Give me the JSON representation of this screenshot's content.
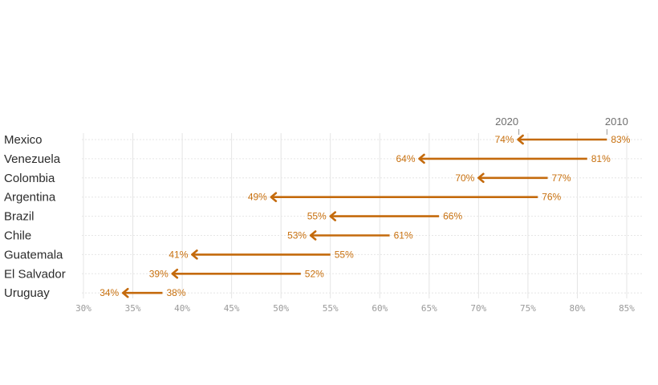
{
  "chart_data": {
    "type": "arrow",
    "series_labels": {
      "start": "2010",
      "end": "2020"
    },
    "xlim": [
      30,
      85
    ],
    "x_ticks": [
      30,
      35,
      40,
      45,
      50,
      55,
      60,
      65,
      70,
      75,
      80,
      85
    ],
    "tick_suffix": "%",
    "rows": [
      {
        "country": "Mexico",
        "v2010": 83,
        "v2020": 74
      },
      {
        "country": "Venezuela",
        "v2010": 81,
        "v2020": 64
      },
      {
        "country": "Colombia",
        "v2010": 77,
        "v2020": 70
      },
      {
        "country": "Argentina",
        "v2010": 76,
        "v2020": 49
      },
      {
        "country": "Brazil",
        "v2010": 66,
        "v2020": 55
      },
      {
        "country": "Chile",
        "v2010": 61,
        "v2020": 53
      },
      {
        "country": "Guatemala",
        "v2010": 55,
        "v2020": 41
      },
      {
        "country": "El Salvador",
        "v2010": 52,
        "v2020": 39
      },
      {
        "country": "Uruguay",
        "v2010": 38,
        "v2020": 34
      }
    ],
    "colors": {
      "arrow": "#c46a0c",
      "value_label": "#c8700e"
    }
  }
}
